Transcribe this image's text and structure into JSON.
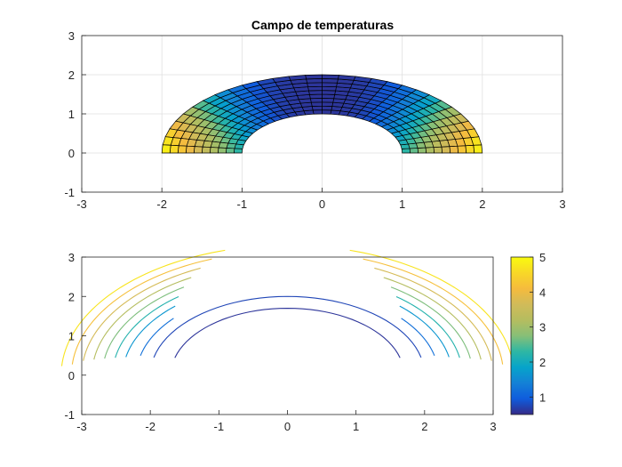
{
  "chart_data": [
    {
      "type": "surface-mesh",
      "title": "Campo de temperaturas",
      "xlim": [
        -3,
        3
      ],
      "ylim": [
        -1,
        3
      ],
      "xticks": [
        "-3",
        "-2",
        "-1",
        "0",
        "1",
        "2",
        "3"
      ],
      "yticks": [
        "-1",
        "0",
        "1",
        "2",
        "3"
      ],
      "grid": true,
      "mesh": {
        "shape": "half-annulus",
        "inner_radius": 1,
        "outer_radius": 2,
        "radial_divisions": 10,
        "angular_divisions": 30,
        "theta_range_deg": [
          0,
          180
        ],
        "edge_color": "#000000"
      },
      "color_range": [
        0.5,
        5
      ]
    },
    {
      "type": "contour",
      "xlim": [
        -3,
        3
      ],
      "ylim": [
        -1,
        3
      ],
      "xticks": [
        "-3",
        "-2",
        "-1",
        "0",
        "1",
        "2",
        "3"
      ],
      "yticks": [
        "-1",
        "0",
        "1",
        "2",
        "3"
      ],
      "grid": false,
      "contour_levels": [
        {
          "radius": 1.7,
          "level": 0.6,
          "theta_deg": [
            15,
            165
          ]
        },
        {
          "radius": 2.0,
          "level": 0.75,
          "theta_deg": [
            13,
            167
          ]
        },
        {
          "radius": 2.2,
          "level": 1.2,
          "theta_deg": [
            13,
            167
          ]
        },
        {
          "radius": 2.4,
          "level": 1.7,
          "theta_deg": [
            11,
            169
          ]
        },
        {
          "radius": 2.55,
          "level": 2.2,
          "theta_deg": [
            10,
            170
          ]
        },
        {
          "radius": 2.7,
          "level": 2.7,
          "theta_deg": [
            9,
            171
          ]
        },
        {
          "radius": 2.85,
          "level": 3.2,
          "theta_deg": [
            8,
            172
          ]
        },
        {
          "radius": 3.0,
          "level": 3.7,
          "theta_deg": [
            7,
            173
          ]
        },
        {
          "radius": 3.15,
          "level": 4.2,
          "theta_deg": [
            5,
            175
          ]
        },
        {
          "radius": 3.3,
          "level": 4.7,
          "theta_deg": [
            4,
            176
          ]
        }
      ],
      "colorbar": {
        "range": [
          0.5,
          5
        ],
        "ticks": [
          "1",
          "2",
          "3",
          "4",
          "5"
        ]
      }
    }
  ]
}
